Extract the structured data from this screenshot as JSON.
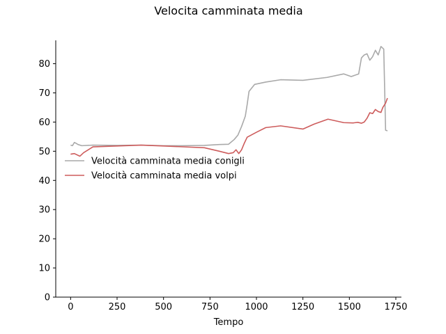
{
  "chart_data": {
    "type": "line",
    "title": "Velocita camminata media",
    "xlabel": "Tempo",
    "ylabel": "",
    "xlim": [
      -80,
      1780
    ],
    "ylim": [
      0,
      88
    ],
    "xticks": [
      0,
      250,
      500,
      750,
      1000,
      1250,
      1500,
      1750
    ],
    "yticks": [
      0,
      10,
      20,
      30,
      40,
      50,
      60,
      70,
      80
    ],
    "grid": false,
    "legend_position": "center-left",
    "series": [
      {
        "name": "Velocità camminata media conigli",
        "color": "#a9a9a9",
        "points": [
          [
            0,
            52.1
          ],
          [
            10,
            51.9
          ],
          [
            20,
            53.0
          ],
          [
            30,
            52.7
          ],
          [
            40,
            52.3
          ],
          [
            60,
            51.9
          ],
          [
            120,
            52.1
          ],
          [
            250,
            52.0
          ],
          [
            380,
            52.1
          ],
          [
            500,
            51.9
          ],
          [
            600,
            51.9
          ],
          [
            720,
            52.0
          ],
          [
            800,
            52.3
          ],
          [
            850,
            52.4
          ],
          [
            880,
            54.0
          ],
          [
            900,
            55.5
          ],
          [
            920,
            58.5
          ],
          [
            940,
            62.0
          ],
          [
            950,
            66.0
          ],
          [
            960,
            70.5
          ],
          [
            990,
            72.9
          ],
          [
            1050,
            73.7
          ],
          [
            1130,
            74.5
          ],
          [
            1250,
            74.3
          ],
          [
            1380,
            75.3
          ],
          [
            1470,
            76.5
          ],
          [
            1510,
            75.6
          ],
          [
            1550,
            76.5
          ],
          [
            1565,
            82.0
          ],
          [
            1580,
            83.0
          ],
          [
            1595,
            83.4
          ],
          [
            1610,
            81.2
          ],
          [
            1625,
            82.4
          ],
          [
            1640,
            84.6
          ],
          [
            1655,
            83.0
          ],
          [
            1670,
            85.9
          ],
          [
            1685,
            85.0
          ],
          [
            1695,
            57.2
          ],
          [
            1705,
            57.0
          ]
        ]
      },
      {
        "name": "Velocità camminata media volpi",
        "color": "#cd5c5c",
        "points": [
          [
            0,
            49.0
          ],
          [
            20,
            49.2
          ],
          [
            50,
            48.3
          ],
          [
            70,
            49.5
          ],
          [
            120,
            51.5
          ],
          [
            250,
            51.8
          ],
          [
            380,
            52.1
          ],
          [
            500,
            51.8
          ],
          [
            720,
            51.2
          ],
          [
            800,
            50.0
          ],
          [
            850,
            49.2
          ],
          [
            875,
            49.5
          ],
          [
            890,
            50.5
          ],
          [
            905,
            49.2
          ],
          [
            920,
            50.5
          ],
          [
            935,
            52.8
          ],
          [
            950,
            54.8
          ],
          [
            1000,
            56.5
          ],
          [
            1050,
            58.1
          ],
          [
            1130,
            58.7
          ],
          [
            1250,
            57.6
          ],
          [
            1310,
            59.3
          ],
          [
            1385,
            61.0
          ],
          [
            1470,
            59.8
          ],
          [
            1520,
            59.7
          ],
          [
            1545,
            59.9
          ],
          [
            1565,
            59.6
          ],
          [
            1580,
            60.0
          ],
          [
            1595,
            61.3
          ],
          [
            1610,
            63.2
          ],
          [
            1625,
            62.9
          ],
          [
            1640,
            64.3
          ],
          [
            1655,
            63.6
          ],
          [
            1670,
            63.3
          ],
          [
            1680,
            65.0
          ],
          [
            1695,
            66.5
          ],
          [
            1705,
            68.2
          ]
        ]
      }
    ]
  }
}
